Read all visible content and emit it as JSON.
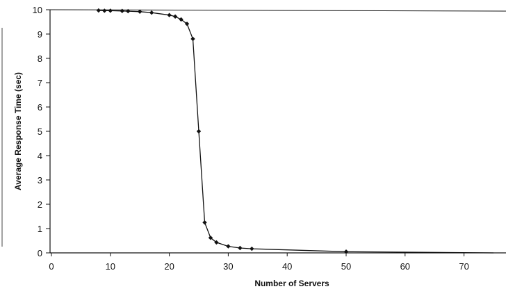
{
  "chart_data": {
    "type": "line",
    "title": "",
    "xlabel": "Number of Servers",
    "ylabel": "Average Response Time (sec)",
    "xlim": [
      0,
      75
    ],
    "ylim": [
      0,
      10
    ],
    "x_ticks": [
      0,
      10,
      20,
      30,
      40,
      50,
      60,
      70
    ],
    "y_ticks": [
      0,
      1,
      2,
      3,
      4,
      5,
      6,
      7,
      8,
      9,
      10
    ],
    "grid": false,
    "legend": "none",
    "series": [
      {
        "x": [
          8,
          9,
          10,
          12,
          13,
          15,
          17,
          20,
          21,
          22,
          23,
          24,
          25,
          26,
          27,
          28,
          30,
          32,
          34,
          50,
          75
        ],
        "y": [
          9.97,
          9.96,
          9.96,
          9.95,
          9.94,
          9.92,
          9.88,
          9.78,
          9.72,
          9.6,
          9.42,
          8.8,
          5.0,
          1.25,
          0.62,
          0.43,
          0.27,
          0.2,
          0.17,
          0.05,
          0.0
        ],
        "marker": "diamond",
        "color": "#111111"
      }
    ]
  }
}
